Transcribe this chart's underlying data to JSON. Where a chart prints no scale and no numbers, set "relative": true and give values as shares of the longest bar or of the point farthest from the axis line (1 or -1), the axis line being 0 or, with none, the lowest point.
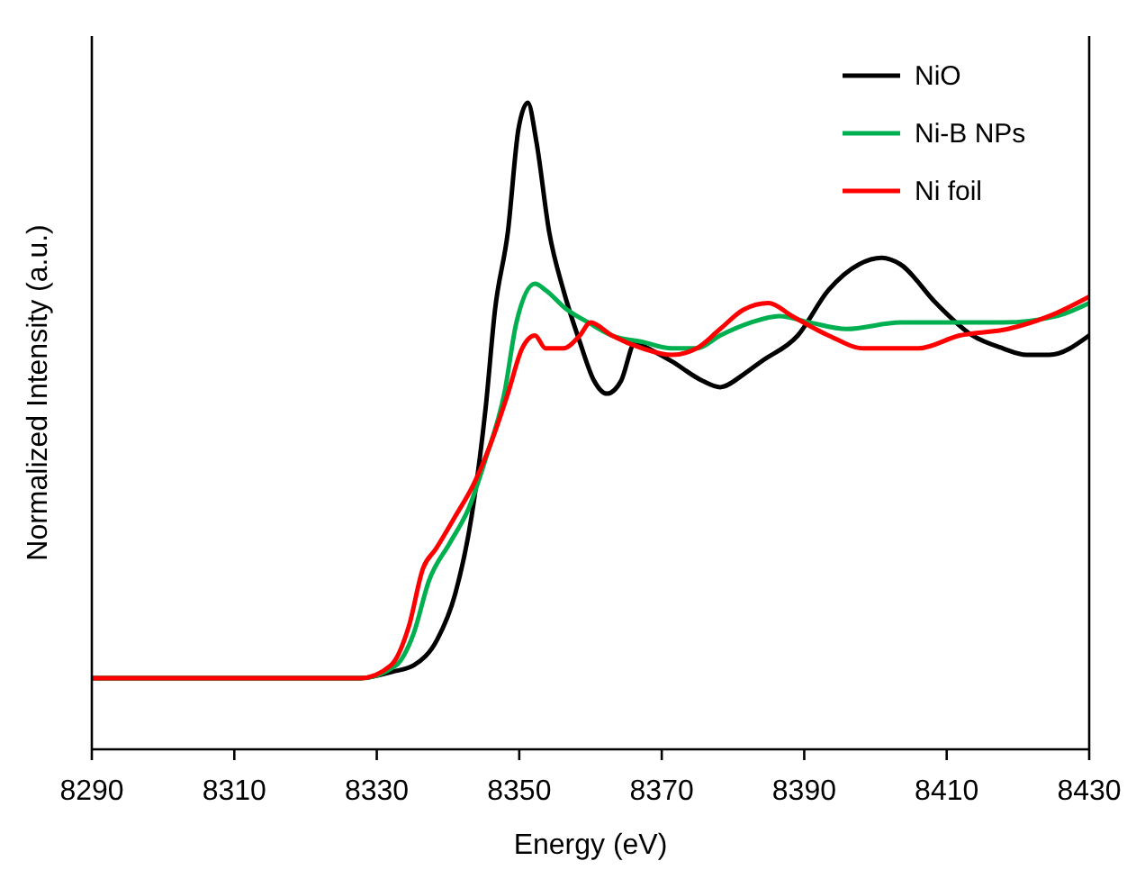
{
  "chart_data": {
    "type": "line",
    "relative": true,
    "xlabel": "Energy (eV)",
    "ylabel": "Normalized Intensity (a.u.)",
    "xlim": [
      8290,
      8430
    ],
    "xticks": [
      8290,
      8310,
      8330,
      8350,
      8370,
      8390,
      8410,
      8430
    ],
    "legend": "top right",
    "grid": false,
    "line_style": "solid",
    "marker": "none",
    "series": [
      {
        "name": "NiO",
        "color": "#000000",
        "x": [
          8290,
          8327.7,
          8332.2,
          8335.2,
          8338.5,
          8341,
          8343.3,
          8345.3,
          8346.6,
          8348.4,
          8349.9,
          8351.2,
          8352.4,
          8354.2,
          8356.2,
          8358.5,
          8360.5,
          8362.3,
          8364.3,
          8366.3,
          8368.1,
          8371.4,
          8375.7,
          8378.2,
          8381.5,
          8384,
          8389.1,
          8393.4,
          8397.7,
          8400.9,
          8403.5,
          8408.5,
          8413.6,
          8417.9,
          8421.2,
          8424.4,
          8430
        ],
        "values": [
          0.11,
          0.11,
          0.12,
          0.13,
          0.17,
          0.24,
          0.36,
          0.53,
          0.68,
          0.8,
          0.96,
          1,
          0.94,
          0.8,
          0.71,
          0.63,
          0.57,
          0.55,
          0.57,
          0.63,
          0.62,
          0.6,
          0.57,
          0.56,
          0.58,
          0.6,
          0.64,
          0.71,
          0.75,
          0.76,
          0.75,
          0.69,
          0.64,
          0.62,
          0.61,
          0.61,
          0.64
        ]
      },
      {
        "name": "Ni-B NPs",
        "color": "#00b050",
        "x": [
          8290,
          8327.7,
          8332.7,
          8335.2,
          8337.3,
          8340.3,
          8342.8,
          8345.3,
          8347.9,
          8349.6,
          8352.2,
          8353.7,
          8356.7,
          8359.7,
          8363,
          8367.3,
          8371.4,
          8374.9,
          8378.2,
          8382.5,
          8386.5,
          8390.8,
          8395.9,
          8403.5,
          8411.8,
          8417.9,
          8425.5,
          8430
        ],
        "values": [
          0.11,
          0.11,
          0.13,
          0.18,
          0.26,
          0.32,
          0.37,
          0.45,
          0.55,
          0.66,
          0.72,
          0.71,
          0.68,
          0.66,
          0.64,
          0.63,
          0.62,
          0.62,
          0.64,
          0.66,
          0.67,
          0.66,
          0.65,
          0.66,
          0.66,
          0.66,
          0.67,
          0.69
        ]
      },
      {
        "name": "Ni foil",
        "color": "#ff0000",
        "x": [
          8290,
          8327.7,
          8332,
          8334.5,
          8336.5,
          8338.3,
          8341,
          8343.6,
          8345.9,
          8348.4,
          8350.4,
          8352.2,
          8353.7,
          8356.2,
          8358.5,
          8360,
          8363,
          8367.3,
          8371.4,
          8374.9,
          8378.2,
          8381.5,
          8385,
          8388.3,
          8393.4,
          8398.4,
          8406,
          8411.8,
          8418.6,
          8424.4,
          8430
        ],
        "values": [
          0.11,
          0.11,
          0.13,
          0.19,
          0.28,
          0.31,
          0.36,
          0.41,
          0.47,
          0.55,
          0.62,
          0.64,
          0.62,
          0.62,
          0.64,
          0.66,
          0.64,
          0.62,
          0.61,
          0.62,
          0.65,
          0.68,
          0.69,
          0.67,
          0.64,
          0.62,
          0.62,
          0.64,
          0.65,
          0.67,
          0.7
        ]
      }
    ]
  }
}
